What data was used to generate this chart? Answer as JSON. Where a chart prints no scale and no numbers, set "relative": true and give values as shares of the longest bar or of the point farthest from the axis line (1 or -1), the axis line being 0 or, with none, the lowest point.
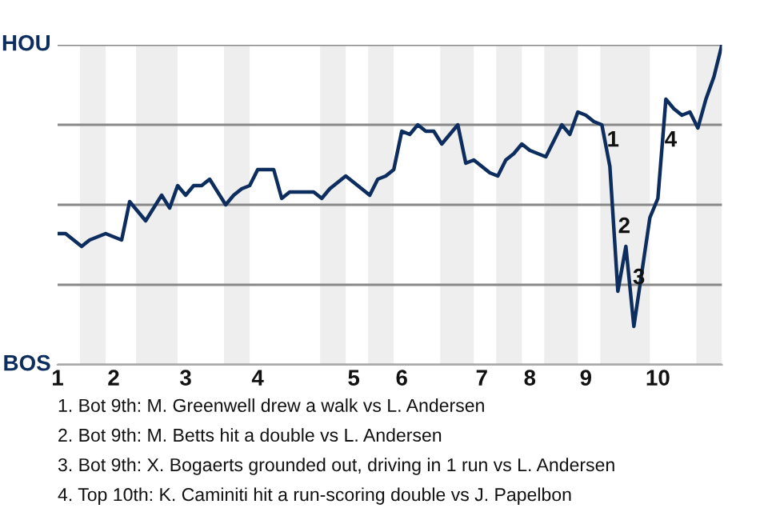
{
  "chart_data": {
    "type": "line",
    "categories": [
      "1",
      null,
      null,
      null,
      null,
      null,
      null,
      "2",
      null,
      null,
      null,
      null,
      null,
      null,
      null,
      null,
      "3",
      null,
      null,
      null,
      null,
      null,
      null,
      null,
      null,
      "4",
      null,
      null,
      null,
      null,
      null,
      null,
      null,
      null,
      null,
      null,
      null,
      "5",
      null,
      null,
      null,
      null,
      null,
      "6",
      null,
      null,
      null,
      null,
      null,
      null,
      null,
      null,
      null,
      "7",
      null,
      null,
      null,
      null,
      null,
      "8",
      null,
      null,
      null,
      null,
      null,
      null,
      "9",
      null,
      null,
      null,
      null,
      null,
      null,
      null,
      null,
      "10",
      null,
      null,
      null,
      null,
      null,
      null,
      null,
      null
    ],
    "series": [
      {
        "color": "#0d2d5e",
        "values": [
          0.41,
          0.41,
          0.39,
          0.37,
          0.39,
          0.4,
          0.41,
          0.4,
          0.39,
          0.51,
          0.48,
          0.45,
          0.49,
          0.53,
          0.49,
          0.56,
          0.53,
          0.56,
          0.56,
          0.58,
          0.54,
          0.5,
          0.53,
          0.55,
          0.56,
          0.61,
          0.61,
          0.61,
          0.52,
          0.54,
          0.54,
          0.54,
          0.54,
          0.52,
          0.55,
          0.57,
          0.59,
          0.57,
          0.55,
          0.53,
          0.58,
          0.59,
          0.61,
          0.73,
          0.72,
          0.75,
          0.73,
          0.73,
          0.69,
          0.72,
          0.75,
          0.63,
          0.64,
          0.62,
          0.6,
          0.59,
          0.64,
          0.66,
          0.69,
          0.67,
          0.66,
          0.65,
          0.7,
          0.75,
          0.72,
          0.79,
          0.78,
          0.76,
          0.75,
          0.62,
          0.23,
          0.37,
          0.12,
          0.29,
          0.46,
          0.52,
          0.83,
          0.8,
          0.78,
          0.79,
          0.74,
          0.83,
          0.9,
          1.0
        ]
      }
    ],
    "relative": true,
    "grid": "y",
    "marker": "none",
    "line_style": "solid",
    "annotations": [
      "HOU",
      "BOS",
      "1",
      "2",
      "3",
      "4",
      "1. Bot 9th: M. Greenwell drew a walk vs L. Andersen",
      "2. Bot 9th: M. Betts hit a double vs L. Andersen",
      "3. Bot 9th: X. Bogaerts grounded out, driving in 1 run vs L. Andersen",
      "4. Top 10th: K. Caminiti hit a run-scoring double vs J. Papelbon"
    ]
  }
}
